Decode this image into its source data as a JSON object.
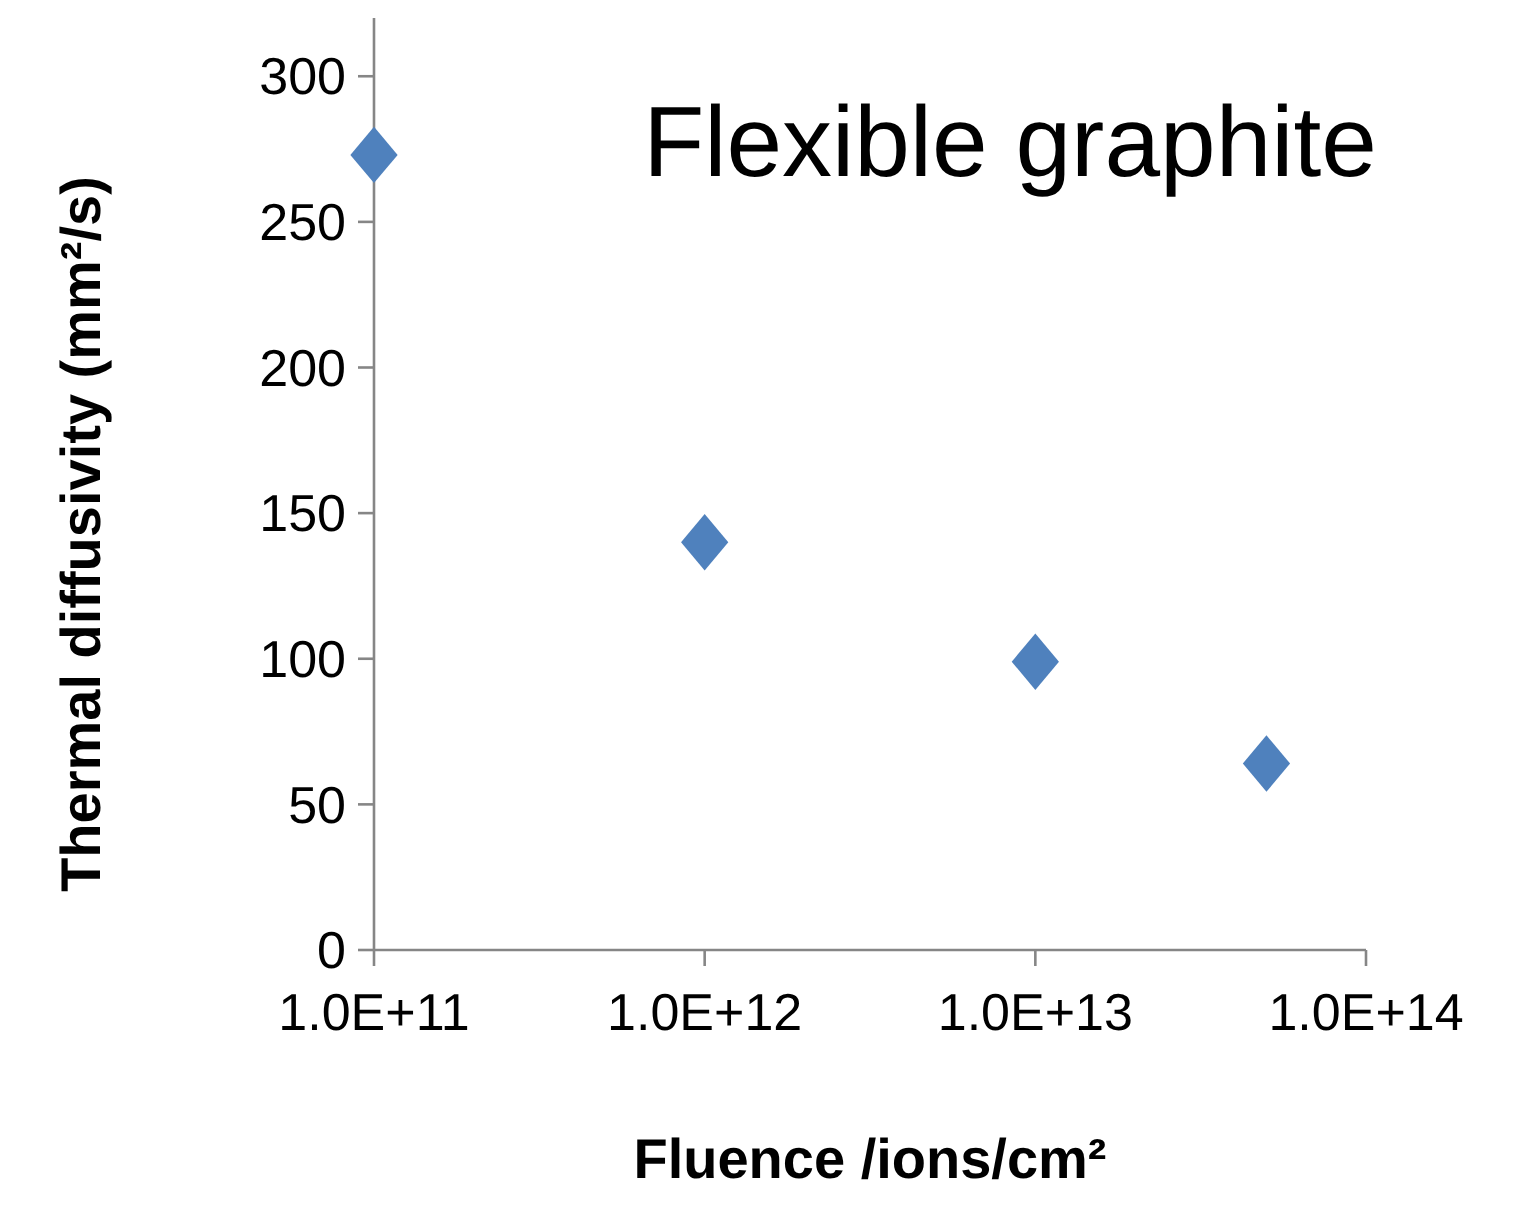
{
  "chart_data": {
    "type": "scatter",
    "title": "Flexible graphite",
    "xlabel": "Fluence /ions/cm²",
    "ylabel": "Thermal diffusivity (mm²/s)",
    "x": [
      100000000000.0,
      1000000000000.0,
      10000000000000.0,
      50000000000000.0
    ],
    "series": [
      {
        "color": "#4f81bd",
        "values": [
          273,
          140,
          99,
          64
        ]
      }
    ],
    "log": "x",
    "xlim": [
      100000000000.0,
      100000000000000.0
    ],
    "xticks": [
      {
        "value": 100000000000.0,
        "label": "1.0E+11"
      },
      {
        "value": 1000000000000.0,
        "label": "1.0E+12"
      },
      {
        "value": 10000000000000.0,
        "label": "1.0E+13"
      },
      {
        "value": 100000000000000.0,
        "label": "1.0E+14"
      }
    ],
    "ylim": [
      0,
      320
    ],
    "yticks": [
      0,
      50,
      100,
      150,
      200,
      250,
      300
    ],
    "marker": "diamond",
    "grid": false
  }
}
